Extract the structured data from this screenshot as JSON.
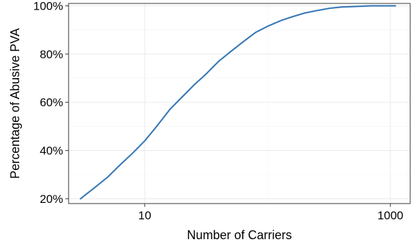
{
  "chart_data": {
    "type": "line",
    "title": "",
    "xlabel": "Number of Carriers",
    "ylabel": "Percentage of Abusive PVA",
    "xscale": "log10",
    "xlim": [
      2.4,
      1450
    ],
    "ylim": [
      18,
      101
    ],
    "x_ticks": [
      {
        "value": 10,
        "label": "10"
      },
      {
        "value": 1000,
        "label": "1000"
      }
    ],
    "y_ticks": [
      {
        "value": 20,
        "label": "20%"
      },
      {
        "value": 40,
        "label": "40%"
      },
      {
        "value": 60,
        "label": "60%"
      },
      {
        "value": 80,
        "label": "80%"
      },
      {
        "value": 100,
        "label": "100%"
      }
    ],
    "grid": true,
    "legend": "none",
    "colors": {
      "line": "#3a7ab7",
      "panel_border": "#333333",
      "grid": "#ebebeb"
    },
    "series": [
      {
        "color": "#3a7ab7",
        "points": [
          [
            3,
            20
          ],
          [
            4,
            25
          ],
          [
            5,
            29
          ],
          [
            6,
            33
          ],
          [
            8,
            39
          ],
          [
            10,
            44
          ],
          [
            12.5,
            50
          ],
          [
            16,
            57
          ],
          [
            20,
            62
          ],
          [
            25,
            67
          ],
          [
            32,
            72
          ],
          [
            40,
            77
          ],
          [
            50,
            81
          ],
          [
            63,
            85
          ],
          [
            80,
            89
          ],
          [
            100,
            91.5
          ],
          [
            130,
            94
          ],
          [
            160,
            95.5
          ],
          [
            200,
            97
          ],
          [
            250,
            98
          ],
          [
            320,
            99
          ],
          [
            400,
            99.5
          ],
          [
            550,
            99.8
          ],
          [
            700,
            100
          ],
          [
            1100,
            100
          ]
        ]
      }
    ]
  }
}
